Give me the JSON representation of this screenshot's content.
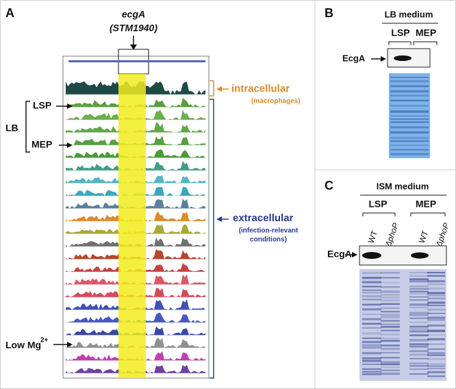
{
  "panel_a": {
    "label": "A",
    "gene": "ecgA",
    "locus": "(STM1940)",
    "group": "LB",
    "lsp": "LSP",
    "mep": "MEP",
    "low_mg": "Low Mg",
    "low_mg_sup": "2+",
    "intracellular": "intracellular",
    "intracellular_note": "(macrophages)",
    "extracellular": "extracellular",
    "extracellular_note_1": "(infection-relevant",
    "extracellular_note_2": "conditions)"
  },
  "panel_b": {
    "label": "B",
    "medium": "LB medium",
    "lanes": [
      "LSP",
      "MEP"
    ],
    "protein": "EcgA"
  },
  "panel_c": {
    "label": "C",
    "medium": "ISM medium",
    "groups": [
      "LSP",
      "MEP"
    ],
    "lanes": [
      "WT",
      "ΔphoP",
      "WT",
      "ΔphoP"
    ],
    "protein": "EcgA"
  }
}
